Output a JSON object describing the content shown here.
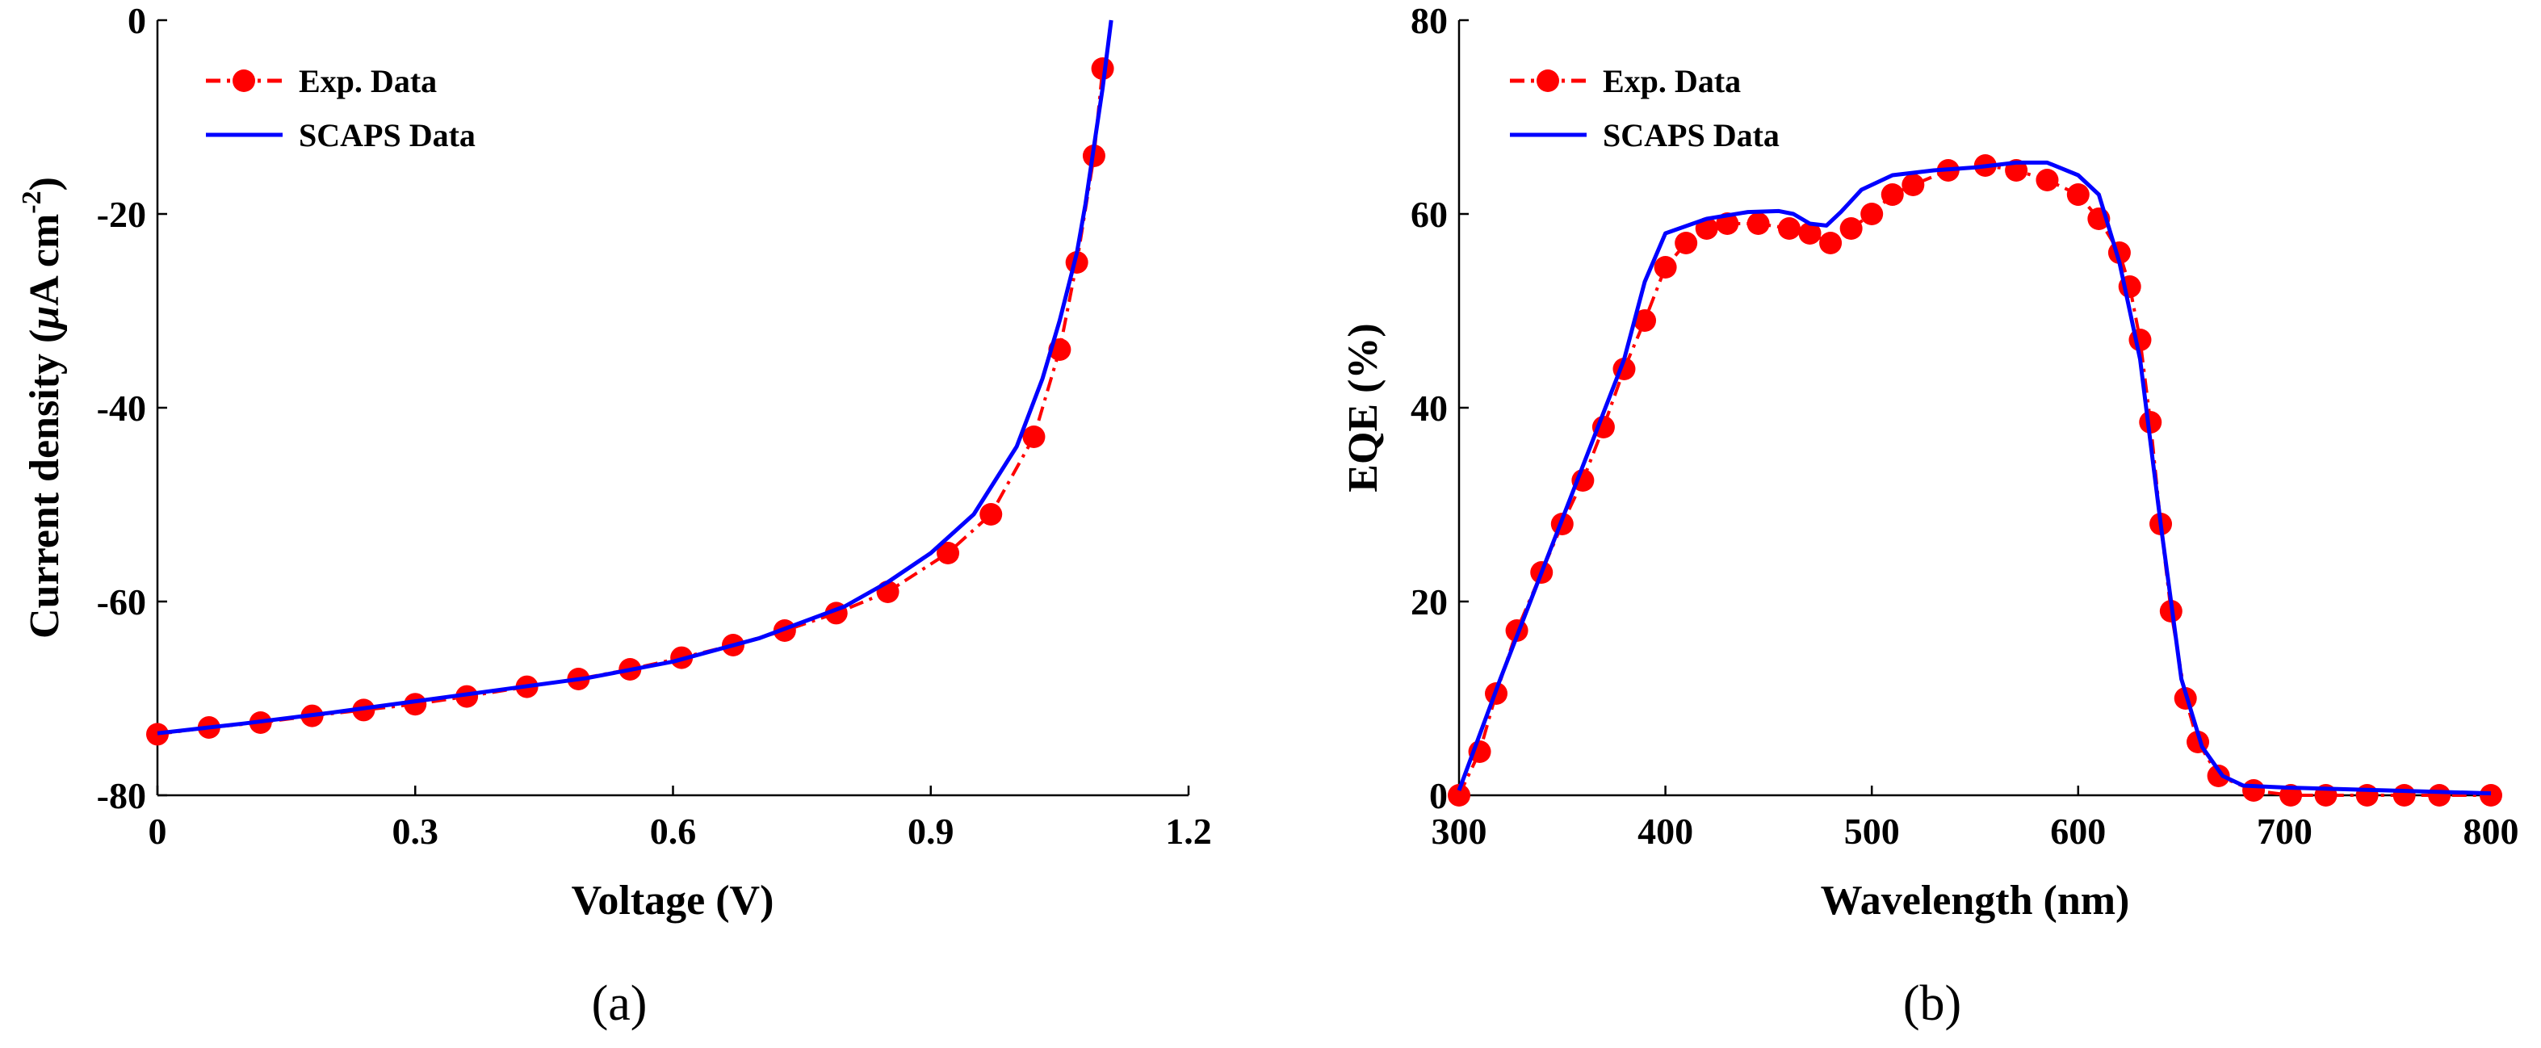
{
  "figure": {
    "panels": [
      "(a)",
      "(b)"
    ]
  },
  "chart_data": [
    {
      "type": "line",
      "panel_label": "(a)",
      "xlabel": "Voltage (V)",
      "ylabel": {
        "prefix": "Current density (",
        "mu": "μ",
        "unit": "A cm",
        "exp": "-2",
        "suffix": ")"
      },
      "xlim": [
        0,
        1.2
      ],
      "ylim": [
        -80,
        0
      ],
      "xticks": [
        0,
        0.3,
        0.6,
        0.9,
        1.2
      ],
      "xtick_labels": [
        "0",
        "0.3",
        "0.6",
        "0.9",
        "1.2"
      ],
      "yticks": [
        0,
        -20,
        -40,
        -60,
        -80
      ],
      "ytick_labels": [
        "0",
        "-20",
        "-40",
        "-60",
        "-80"
      ],
      "legend_location": "top-left",
      "series": [
        {
          "name": "Exp. Data",
          "color": "#ff0000",
          "style": "dash-dot with circle markers",
          "x": [
            0,
            0.06,
            0.12,
            0.18,
            0.24,
            0.3,
            0.36,
            0.43,
            0.49,
            0.55,
            0.61,
            0.67,
            0.73,
            0.79,
            0.85,
            0.92,
            0.97,
            1.02,
            1.05,
            1.07,
            1.09,
            1.1
          ],
          "y": [
            -73.7,
            -73.0,
            -72.5,
            -71.8,
            -71.2,
            -70.6,
            -69.8,
            -68.8,
            -68.0,
            -67.0,
            -65.8,
            -64.5,
            -63.0,
            -61.2,
            -59.0,
            -55.0,
            -51.0,
            -43.0,
            -34.0,
            -25.0,
            -14.0,
            -5.0
          ]
        },
        {
          "name": "SCAPS Data",
          "color": "#0000ff",
          "style": "solid",
          "x": [
            0,
            0.1,
            0.2,
            0.3,
            0.4,
            0.5,
            0.6,
            0.7,
            0.8,
            0.85,
            0.9,
            0.95,
            1.0,
            1.03,
            1.05,
            1.07,
            1.08,
            1.09,
            1.1,
            1.11
          ],
          "y": [
            -73.6,
            -72.6,
            -71.5,
            -70.3,
            -69.1,
            -67.9,
            -66.2,
            -63.8,
            -60.5,
            -58.0,
            -55.0,
            -51.0,
            -44.0,
            -37.0,
            -31.0,
            -24.0,
            -19.0,
            -13.0,
            -7.0,
            0
          ]
        }
      ]
    },
    {
      "type": "line",
      "panel_label": "(b)",
      "xlabel": "Wavelength (nm)",
      "ylabel": "EQE (%)",
      "xlim": [
        300,
        800
      ],
      "ylim": [
        0,
        80
      ],
      "xticks": [
        300,
        400,
        500,
        600,
        700,
        800
      ],
      "xtick_labels": [
        "300",
        "400",
        "500",
        "600",
        "700",
        "800"
      ],
      "yticks": [
        0,
        20,
        40,
        60,
        80
      ],
      "ytick_labels": [
        "0",
        "20",
        "40",
        "60",
        "80"
      ],
      "legend_location": "top-left",
      "series": [
        {
          "name": "Exp. Data",
          "color": "#ff0000",
          "style": "dash-dot with circle markers",
          "x": [
            300,
            310,
            318,
            328,
            340,
            350,
            360,
            370,
            380,
            390,
            400,
            410,
            420,
            430,
            445,
            460,
            470,
            480,
            490,
            500,
            510,
            520,
            537,
            555,
            570,
            585,
            600,
            610,
            620,
            625,
            630,
            635,
            640,
            645,
            652,
            658,
            668,
            685,
            703,
            720,
            740,
            758,
            775,
            800
          ],
          "y": [
            0,
            4.5,
            10.5,
            17,
            23,
            28,
            32.5,
            38,
            44,
            49,
            54.5,
            57,
            58.5,
            59,
            59,
            58.5,
            58,
            57,
            58.5,
            60,
            62,
            63,
            64.5,
            65,
            64.5,
            63.5,
            62,
            59.5,
            56,
            52.5,
            47,
            38.5,
            28,
            19,
            10,
            5.5,
            2,
            0.5,
            0,
            0,
            0,
            0,
            0,
            0
          ]
        },
        {
          "name": "SCAPS Data",
          "color": "#0000ff",
          "style": "solid",
          "x": [
            300,
            320,
            340,
            360,
            380,
            390,
            400,
            420,
            440,
            455,
            462,
            470,
            478,
            485,
            495,
            510,
            530,
            550,
            570,
            585,
            600,
            610,
            620,
            630,
            640,
            650,
            660,
            670,
            680,
            700,
            750,
            800
          ],
          "y": [
            0.5,
            12,
            23,
            34,
            45,
            53,
            58,
            59.5,
            60.2,
            60.3,
            60,
            59,
            58.8,
            60.2,
            62.5,
            64,
            64.5,
            64.8,
            65.3,
            65.3,
            64,
            62,
            55,
            45,
            28,
            12,
            5,
            2,
            1,
            0.8,
            0.5,
            0.2
          ]
        }
      ]
    }
  ]
}
